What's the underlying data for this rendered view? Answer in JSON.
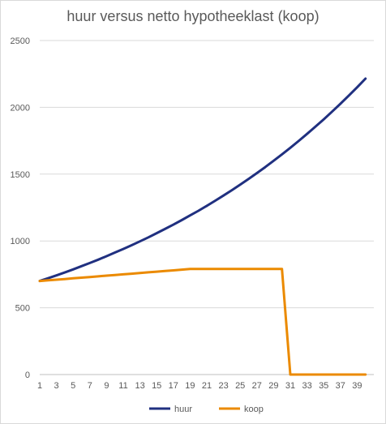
{
  "chart_data": {
    "type": "line",
    "title": "huur versus netto hypotheeklast (koop)",
    "xlabel": "",
    "ylabel": "",
    "ylim": [
      0,
      2500
    ],
    "yticks": [
      0,
      500,
      1000,
      1500,
      2000,
      2500
    ],
    "grid": true,
    "legend": "bottom",
    "x": [
      1,
      2,
      3,
      4,
      5,
      6,
      7,
      8,
      9,
      10,
      11,
      12,
      13,
      14,
      15,
      16,
      17,
      18,
      19,
      20,
      21,
      22,
      23,
      24,
      25,
      26,
      27,
      28,
      29,
      30,
      31,
      32,
      33,
      34,
      35,
      36,
      37,
      38,
      39,
      40
    ],
    "xtick_labels": [
      "1",
      "3",
      "5",
      "7",
      "9",
      "11",
      "13",
      "15",
      "17",
      "19",
      "21",
      "23",
      "25",
      "27",
      "29",
      "31",
      "33",
      "35",
      "37",
      "39"
    ],
    "series": [
      {
        "name": "huur",
        "color": "#203080",
        "values": [
          700,
          721,
          742,
          764,
          787,
          811,
          835,
          860,
          886,
          913,
          940,
          968,
          997,
          1027,
          1058,
          1090,
          1122,
          1156,
          1191,
          1226,
          1263,
          1301,
          1340,
          1380,
          1422,
          1464,
          1508,
          1553,
          1600,
          1648,
          1697,
          1748,
          1801,
          1855,
          1910,
          1968,
          2027,
          2088,
          2150,
          2215
        ]
      },
      {
        "name": "koop",
        "color": "#EB8A00",
        "values": [
          700,
          705,
          710,
          715,
          720,
          725,
          730,
          735,
          740,
          745,
          750,
          755,
          760,
          765,
          770,
          775,
          780,
          785,
          790,
          790,
          790,
          790,
          790,
          790,
          790,
          790,
          790,
          790,
          790,
          790,
          0,
          0,
          0,
          0,
          0,
          0,
          0,
          0,
          0,
          0
        ]
      }
    ]
  }
}
